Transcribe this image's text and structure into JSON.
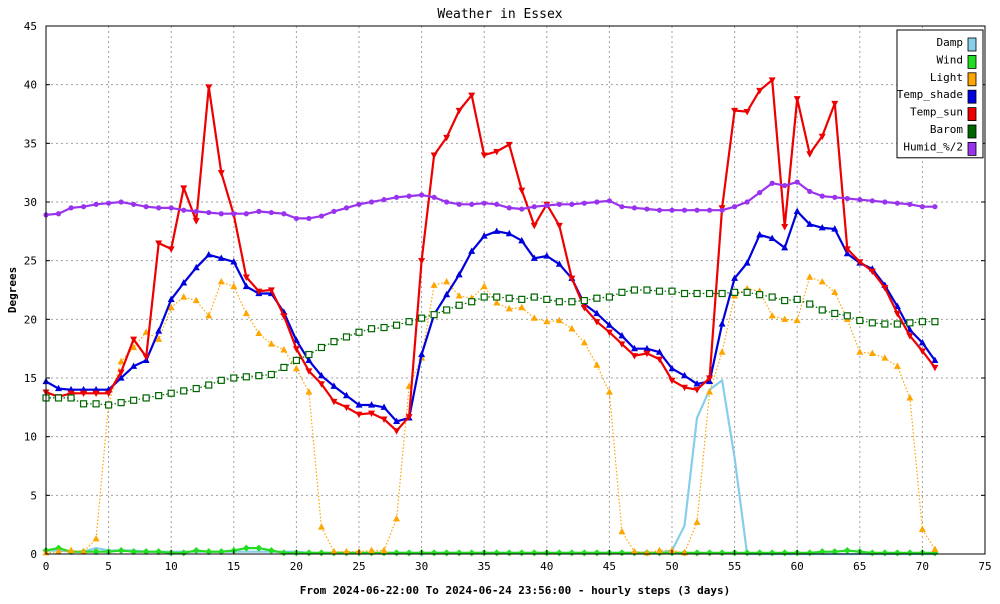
{
  "chart_data": {
    "type": "line",
    "title": "Weather in Essex",
    "xlabel": "From 2024-06-22:00 To 2024-06-24 23:56:00 - hourly steps (3 days)",
    "ylabel": "Degrees",
    "xlim": [
      0,
      75
    ],
    "ylim": [
      0,
      45
    ],
    "xticks": [
      "0",
      "5",
      "10",
      "15",
      "20",
      "25",
      "30",
      "35",
      "40",
      "45",
      "50",
      "55",
      "60",
      "65",
      "70",
      "75"
    ],
    "yticks": [
      "0",
      "5",
      "10",
      "15",
      "20",
      "25",
      "30",
      "35",
      "40",
      "45"
    ],
    "grid": true,
    "legend_position": "top-right",
    "series": [
      {
        "name": "Damp",
        "color": "#87ceeb",
        "style": "solid",
        "marker": "none",
        "values": [
          0.3,
          0.3,
          0.2,
          0.2,
          0.5,
          0.3,
          0.3,
          0.3,
          0.2,
          0.2,
          0.2,
          0.2,
          0.2,
          0.2,
          0.2,
          0.2,
          0.2,
          0.2,
          0.2,
          0.2,
          0.2,
          0.1,
          0.1,
          0.1,
          0.1,
          0.1,
          0.1,
          0.1,
          0.1,
          0.1,
          0.1,
          0.1,
          0.1,
          0.1,
          0.1,
          0.1,
          0.1,
          0.1,
          0.1,
          0.1,
          0.1,
          0.1,
          0.1,
          0.1,
          0.1,
          0.1,
          0.1,
          0.1,
          0.1,
          0.1,
          0.3,
          2.4,
          11.6,
          14.0,
          14.8,
          8.2,
          0,
          0,
          0,
          0,
          0,
          0,
          0,
          0,
          0,
          0,
          0,
          0,
          0,
          0,
          0,
          0
        ]
      },
      {
        "name": "Wind",
        "color": "#22dd22",
        "style": "solid",
        "marker": "diamond",
        "values": [
          0.3,
          0.5,
          0.2,
          0.2,
          0.2,
          0.2,
          0.3,
          0.2,
          0.2,
          0.2,
          0.1,
          0.1,
          0.3,
          0.2,
          0.2,
          0.3,
          0.5,
          0.5,
          0.3,
          0.1,
          0.1,
          0.1,
          0.1,
          0.1,
          0.1,
          0.1,
          0.1,
          0.1,
          0.1,
          0.1,
          0.1,
          0.1,
          0.1,
          0.1,
          0.1,
          0.1,
          0.1,
          0.1,
          0.1,
          0.1,
          0.1,
          0.1,
          0.1,
          0.1,
          0.1,
          0.1,
          0.1,
          0.1,
          0.1,
          0.1,
          0.1,
          0.1,
          0.1,
          0.1,
          0.1,
          0.1,
          0.1,
          0.1,
          0.1,
          0.1,
          0.1,
          0.1,
          0.2,
          0.2,
          0.3,
          0.2,
          0.1,
          0.1,
          0.1,
          0.1,
          0.1,
          0.1
        ]
      },
      {
        "name": "Light",
        "color": "#ffa500",
        "style": "dotted",
        "marker": "triangle",
        "values": [
          0.1,
          0.2,
          0.3,
          0.2,
          1.3,
          12.8,
          16.4,
          17.6,
          18.9,
          18.3,
          21.0,
          21.9,
          21.6,
          20.3,
          23.2,
          22.8,
          20.5,
          18.8,
          17.9,
          17.4,
          15.8,
          13.8,
          2.3,
          0.2,
          0.2,
          0.2,
          0.3,
          0.3,
          3.0,
          14.3,
          16.7,
          22.9,
          23.2,
          22.0,
          21.8,
          22.8,
          21.4,
          20.9,
          21.0,
          20.1,
          19.8,
          19.9,
          19.2,
          18.0,
          16.1,
          13.8,
          1.9,
          0.2,
          0.1,
          0.3,
          0.3,
          0.1,
          2.7,
          13.8,
          17.2,
          22.0,
          22.6,
          22.4,
          20.3,
          20.0,
          19.9,
          23.6,
          23.2,
          22.3,
          20.0,
          17.2,
          17.1,
          16.7,
          16.0,
          13.3,
          2.1,
          0.4
        ]
      },
      {
        "name": "Temp_shade",
        "color": "#0000dd",
        "style": "solid",
        "marker": "triangle",
        "values": [
          14.7,
          14.1,
          14.0,
          14.0,
          14.0,
          14.0,
          15.0,
          16.0,
          16.5,
          19.0,
          21.7,
          23.1,
          24.4,
          25.5,
          25.2,
          24.9,
          22.8,
          22.2,
          22.2,
          20.6,
          18.2,
          16.5,
          15.2,
          14.3,
          13.5,
          12.7,
          12.7,
          12.5,
          11.3,
          11.6,
          17.0,
          20.4,
          22.1,
          23.8,
          25.8,
          27.1,
          27.5,
          27.3,
          26.7,
          25.2,
          25.4,
          24.7,
          23.5,
          21.3,
          20.5,
          19.5,
          18.6,
          17.5,
          17.5,
          17.2,
          15.8,
          15.2,
          14.5,
          14.7,
          19.6,
          23.5,
          24.8,
          27.2,
          26.9,
          26.1,
          29.2,
          28.1,
          27.8,
          27.7,
          25.6,
          24.8,
          24.3,
          22.9,
          21.1,
          19.1,
          18.0,
          16.5
        ]
      },
      {
        "name": "Temp_sun",
        "color": "#ee0000",
        "style": "solid",
        "marker": "triangle-down",
        "values": [
          13.8,
          13.4,
          13.7,
          13.7,
          13.7,
          13.7,
          15.5,
          18.3,
          16.8,
          26.5,
          26.0,
          31.2,
          28.4,
          39.8,
          32.5,
          28.9,
          23.6,
          22.4,
          22.5,
          20.3,
          17.5,
          15.6,
          14.5,
          13.0,
          12.5,
          11.9,
          12.0,
          11.5,
          10.5,
          11.7,
          25.0,
          34.0,
          35.5,
          37.8,
          39.1,
          34.0,
          34.3,
          34.9,
          31.0,
          28.0,
          29.8,
          28.0,
          23.5,
          21.0,
          19.8,
          18.9,
          17.9,
          16.9,
          17.1,
          16.6,
          14.8,
          14.2,
          14.0,
          15.0,
          29.5,
          37.8,
          37.7,
          39.5,
          40.4,
          27.9,
          38.8,
          34.1,
          35.6,
          38.4,
          26.0,
          24.9,
          24.1,
          22.7,
          20.5,
          18.6,
          17.3,
          15.9
        ]
      },
      {
        "name": "Barom",
        "color": "#006600",
        "style": "dotted",
        "marker": "square",
        "values": [
          13.3,
          13.3,
          13.3,
          12.8,
          12.8,
          12.7,
          12.9,
          13.1,
          13.3,
          13.5,
          13.7,
          13.9,
          14.1,
          14.4,
          14.8,
          15.0,
          15.1,
          15.2,
          15.3,
          15.9,
          16.5,
          17.0,
          17.6,
          18.1,
          18.5,
          18.9,
          19.2,
          19.3,
          19.5,
          19.8,
          20.1,
          20.4,
          20.8,
          21.2,
          21.5,
          21.9,
          21.9,
          21.8,
          21.7,
          21.9,
          21.7,
          21.5,
          21.5,
          21.6,
          21.8,
          21.9,
          22.3,
          22.5,
          22.5,
          22.4,
          22.4,
          22.2,
          22.2,
          22.2,
          22.2,
          22.3,
          22.3,
          22.1,
          21.9,
          21.6,
          21.7,
          21.3,
          20.8,
          20.5,
          20.3,
          19.9,
          19.7,
          19.6,
          19.6,
          19.7,
          19.8,
          19.8
        ]
      },
      {
        "name": "Humid_%/2",
        "color": "#9933ee",
        "style": "solid",
        "marker": "star",
        "values": [
          28.9,
          29.0,
          29.5,
          29.6,
          29.8,
          29.9,
          30.0,
          29.8,
          29.6,
          29.5,
          29.5,
          29.3,
          29.2,
          29.1,
          29.0,
          29.0,
          29.0,
          29.2,
          29.1,
          29.0,
          28.6,
          28.6,
          28.8,
          29.2,
          29.5,
          29.8,
          30.0,
          30.2,
          30.4,
          30.5,
          30.6,
          30.4,
          30.0,
          29.8,
          29.8,
          29.9,
          29.8,
          29.5,
          29.4,
          29.6,
          29.7,
          29.8,
          29.8,
          29.9,
          30.0,
          30.1,
          29.6,
          29.5,
          29.4,
          29.3,
          29.3,
          29.3,
          29.3,
          29.3,
          29.3,
          29.6,
          30.0,
          30.8,
          31.6,
          31.4,
          31.7,
          30.9,
          30.5,
          30.4,
          30.3,
          30.2,
          30.1,
          30.0,
          29.9,
          29.8,
          29.6,
          29.6
        ]
      }
    ]
  }
}
